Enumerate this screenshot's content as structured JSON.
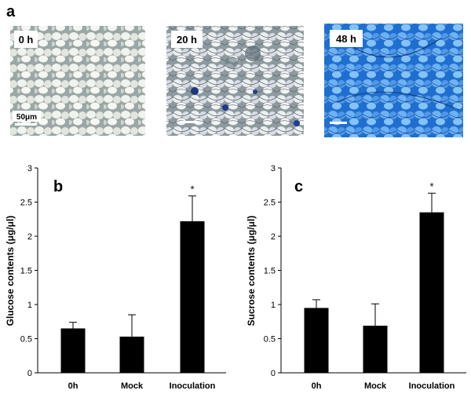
{
  "panel_a": {
    "letter": "a",
    "images": [
      {
        "label": "0 h",
        "scale_label": "50μm",
        "tone": "light"
      },
      {
        "label": "20 h",
        "scale_label": "",
        "tone": "hyphae"
      },
      {
        "label": "48 h",
        "scale_label": "",
        "tone": "blue"
      }
    ]
  },
  "chart_data": [
    {
      "type": "bar",
      "panel": "b",
      "categories": [
        "0h",
        "Mock",
        "Inoculation"
      ],
      "values": [
        0.65,
        0.53,
        2.22
      ],
      "errors": [
        0.09,
        0.32,
        0.37
      ],
      "significance": [
        "",
        "",
        "*"
      ],
      "ylabel": "Glucose contents (μg/μl)",
      "ylim": [
        0,
        3
      ],
      "yticks": [
        "0",
        "0.5",
        "1",
        "1.5",
        "2",
        "2.5",
        "3"
      ],
      "color": "#000000"
    },
    {
      "type": "bar",
      "panel": "c",
      "categories": [
        "0h",
        "Mock",
        "Inoculation"
      ],
      "values": [
        0.95,
        0.69,
        2.35
      ],
      "errors": [
        0.12,
        0.32,
        0.28
      ],
      "significance": [
        "",
        "",
        "*"
      ],
      "ylabel": "Sucrose contents (μg/μl)",
      "ylim": [
        0,
        3
      ],
      "yticks": [
        "0",
        "0.5",
        "1",
        "1.5",
        "2",
        "2.5",
        "3"
      ],
      "color": "#000000"
    }
  ]
}
